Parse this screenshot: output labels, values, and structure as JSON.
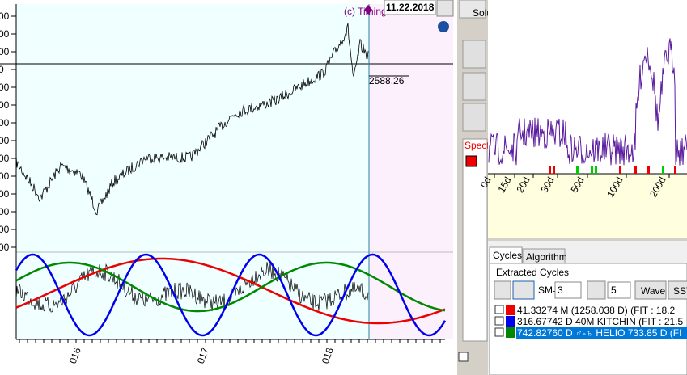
{
  "main_chart": {
    "watermark": "(c) Timing",
    "date": "11.22.2018",
    "cursor_value": "2588.26",
    "y_labels": [
      "00",
      "00",
      "00",
      "0",
      "00",
      "00",
      "00",
      "00",
      "00",
      "00",
      "00",
      "00",
      "00",
      "00"
    ],
    "x_labels": [
      "016",
      "017",
      "018"
    ]
  },
  "toolbar": {
    "button": "Solu"
  },
  "spectrum": {
    "label": "Spectr",
    "x_labels": [
      "0d",
      "15d",
      "20d",
      "30d",
      "50d",
      "100d",
      "200d"
    ]
  },
  "cycles_panel": {
    "tabs": [
      "Cycles",
      "Algorithm"
    ],
    "group": "Extracted Cycles",
    "sm_label": "SM=",
    "sm_value": "3",
    "second_value": "5",
    "buttons": [
      "Wave",
      "SST"
    ],
    "rows": [
      "41.33274 M (1258.038 D)  (FIT : 18.2",
      "316.67742 D 40M KITCHIN (FIT : 21.5",
      "742.82760 D ♂-♄ HELIO 733.85 D (FI"
    ]
  }
}
